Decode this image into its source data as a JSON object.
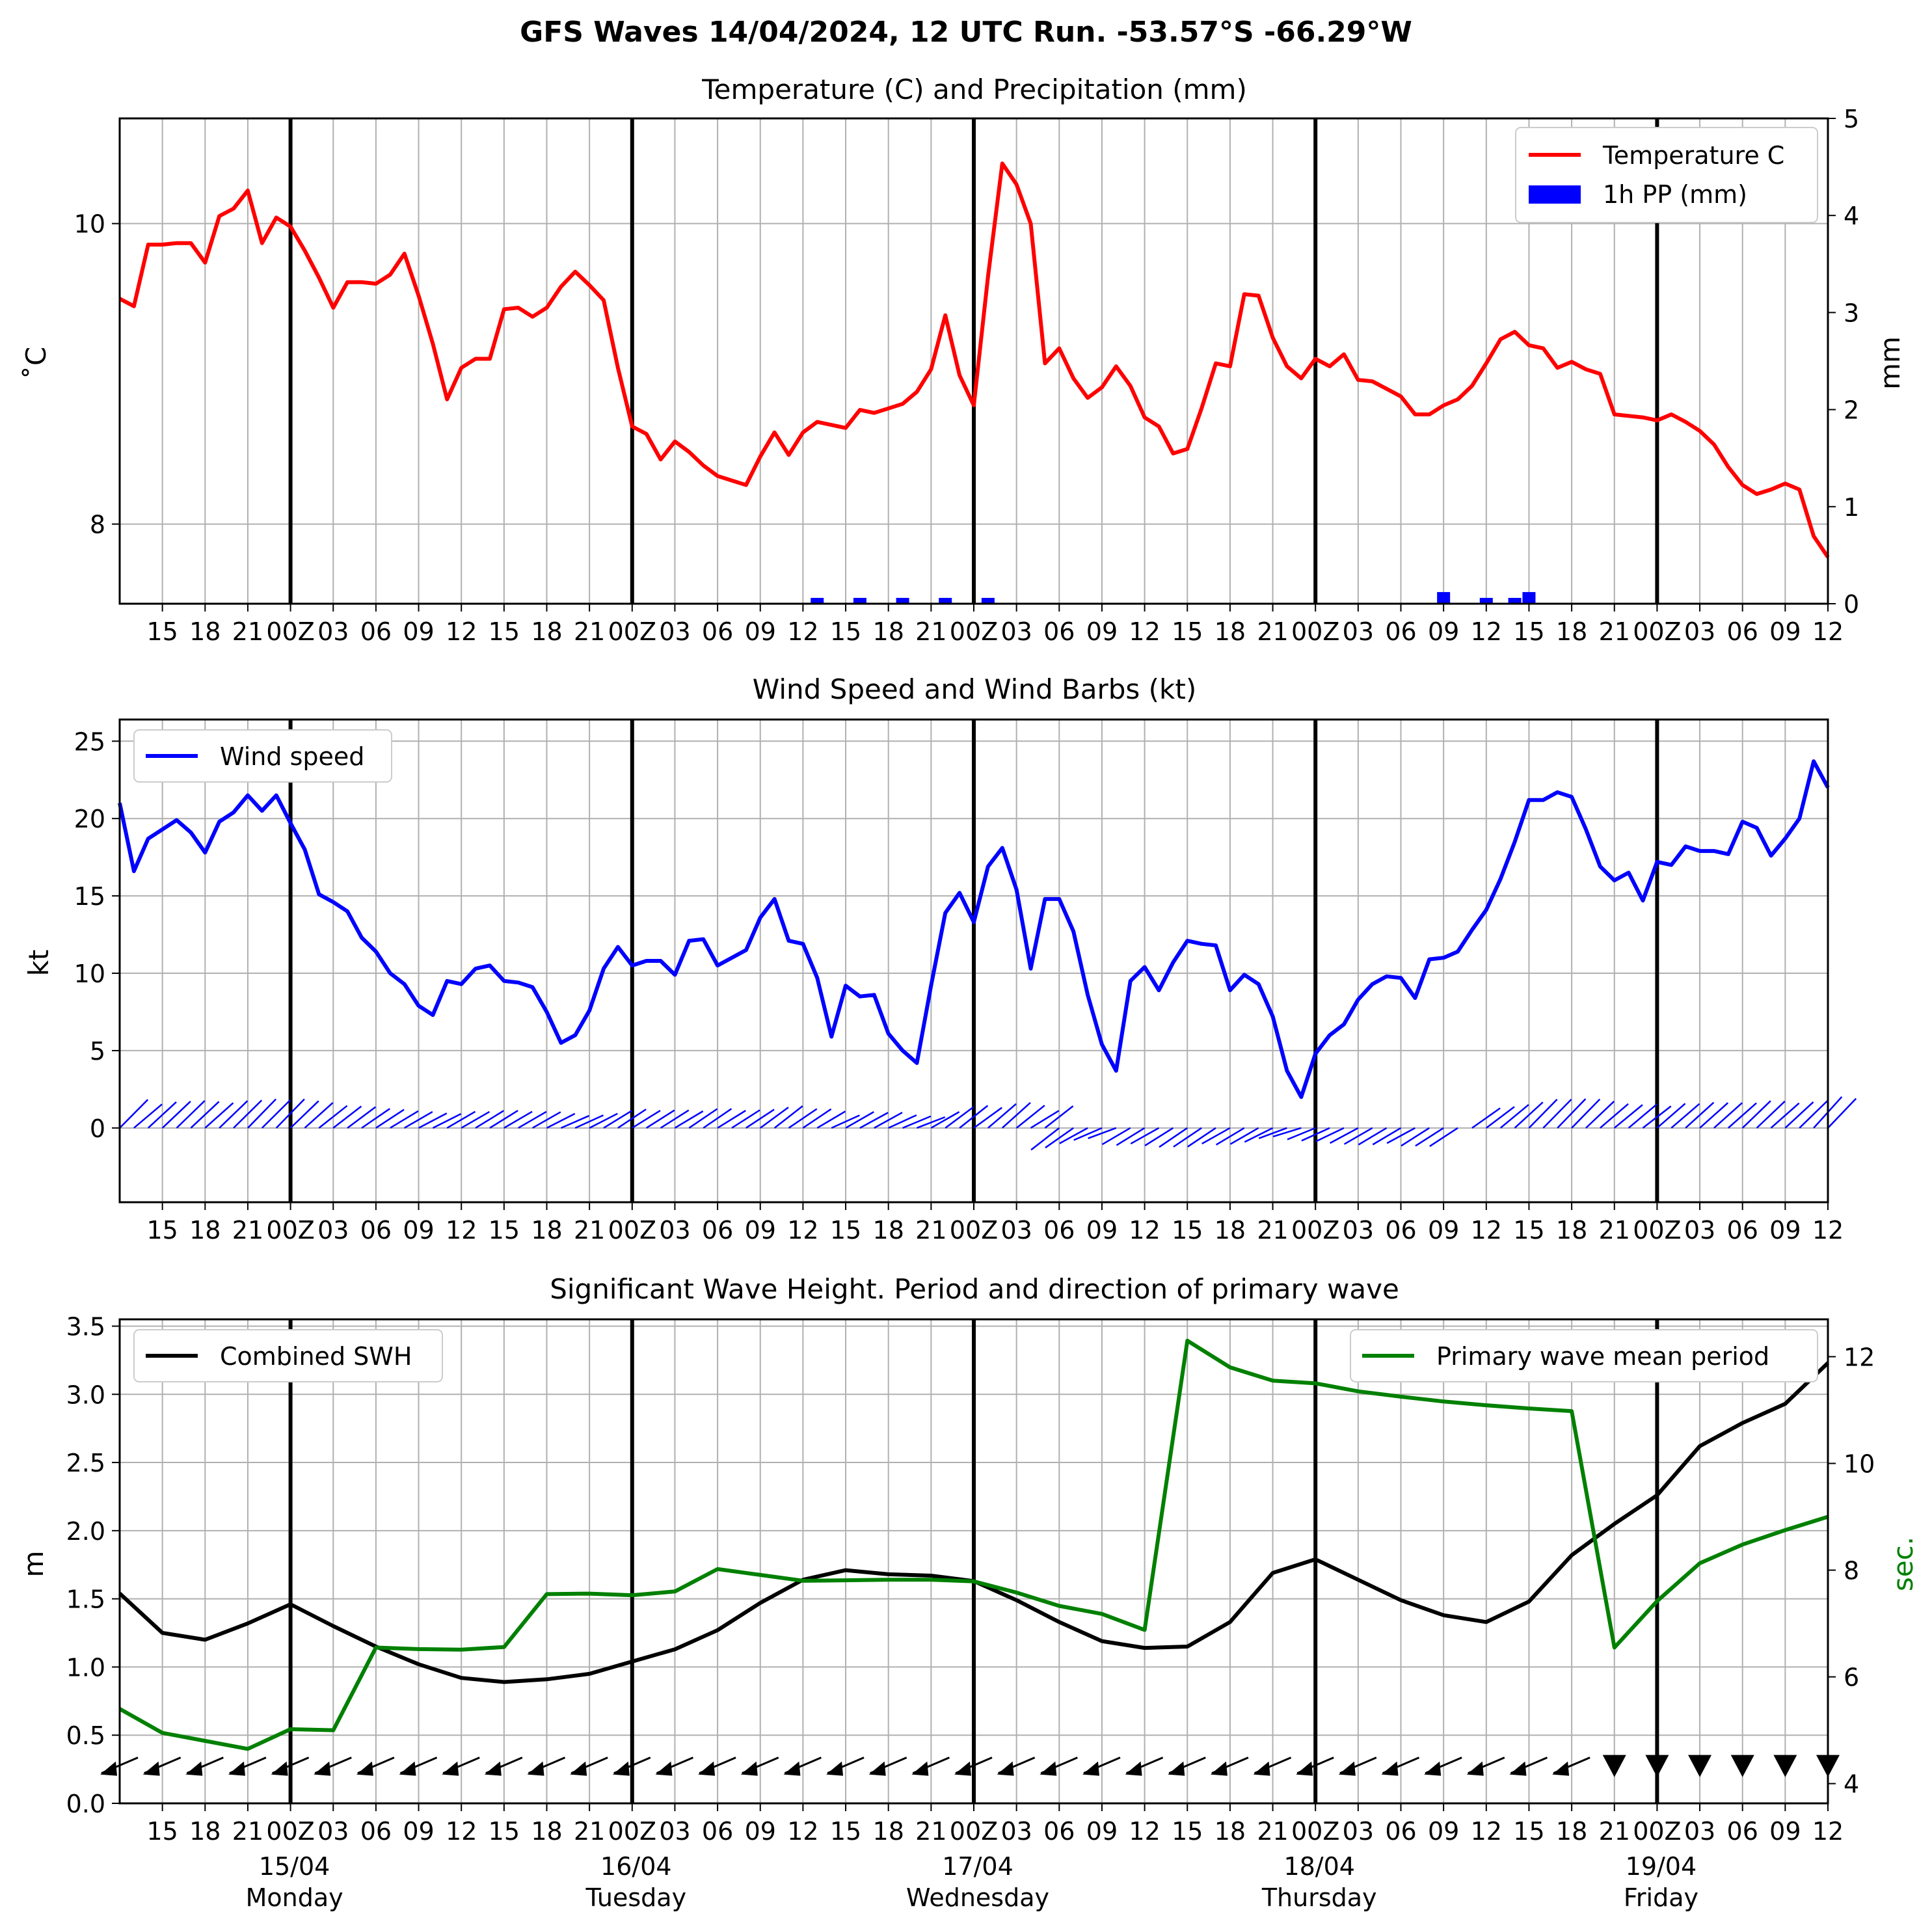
{
  "suptitle": "GFS Waves 14/04/2024, 12 UTC Run. -53.57°S -66.29°W",
  "time_axis": {
    "start_hour": 12,
    "hours_total": 120,
    "tick_labels": [
      "15",
      "18",
      "21",
      "00Z",
      "03",
      "06",
      "09",
      "12",
      "15",
      "18",
      "21",
      "00Z",
      "03",
      "06",
      "09",
      "12",
      "15",
      "18",
      "21",
      "00Z",
      "03",
      "06",
      "09",
      "12",
      "15",
      "18",
      "21",
      "00Z",
      "03",
      "06",
      "09",
      "12",
      "15",
      "18",
      "21",
      "00Z",
      "03",
      "06",
      "09",
      "12"
    ],
    "day_labels": [
      {
        "date": "15/04",
        "weekday": "Monday"
      },
      {
        "date": "16/04",
        "weekday": "Tuesday"
      },
      {
        "date": "17/04",
        "weekday": "Wednesday"
      },
      {
        "date": "18/04",
        "weekday": "Thursday"
      },
      {
        "date": "19/04",
        "weekday": "Friday"
      }
    ]
  },
  "colors": {
    "temperature": "#ff0000",
    "precip": "#0000ff",
    "wind": "#0000ff",
    "swh": "#000000",
    "period": "#008000",
    "grid": "#b0b0b0"
  },
  "chart_data": [
    {
      "type": "line",
      "title": "Temperature (C) and Precipitation (mm)",
      "ylabel": "$^\\circ$C",
      "ylabel_display": "˚C",
      "y2label": "mm",
      "ylim": [
        7.47,
        10.7
      ],
      "y_ticks": [
        "8",
        "10"
      ],
      "y2lim": [
        0,
        5
      ],
      "y2_ticks": [
        "0",
        "1",
        "2",
        "3",
        "4",
        "5"
      ],
      "legend": [
        "Temperature C",
        "1h PP (mm)"
      ],
      "legend_position": "upper right",
      "series": [
        {
          "name": "Temperature C",
          "axis": "left",
          "hours": [
            12,
            13,
            14,
            15,
            16,
            17,
            18,
            19,
            20,
            21,
            22,
            23,
            24,
            25,
            26,
            27,
            28,
            29,
            30,
            31,
            32,
            33,
            34,
            35,
            36,
            37,
            38,
            39,
            40,
            41,
            42,
            43,
            44,
            45,
            46,
            47,
            48,
            49,
            50,
            51,
            52,
            53,
            54,
            55,
            56,
            57,
            58,
            59,
            60,
            61,
            62,
            63,
            64,
            65,
            66,
            67,
            68,
            69,
            70,
            71,
            72,
            73,
            74,
            75,
            76,
            77,
            78,
            79,
            80,
            81,
            82,
            83,
            84,
            85,
            86,
            87,
            88,
            89,
            90,
            91,
            92,
            93,
            94,
            95,
            96,
            97,
            98,
            99,
            100,
            101,
            102,
            103,
            104,
            105,
            106,
            107,
            108,
            109,
            110,
            111,
            112,
            113,
            114,
            115,
            116,
            117,
            118,
            119,
            120,
            121,
            122,
            123,
            124,
            125,
            126,
            127,
            128,
            129,
            130,
            131,
            132
          ],
          "values": [
            9.5,
            9.45,
            9.86,
            9.86,
            9.87,
            9.87,
            9.74,
            10.05,
            10.1,
            10.22,
            9.87,
            10.04,
            9.98,
            9.82,
            9.64,
            9.44,
            9.61,
            9.61,
            9.6,
            9.66,
            9.8,
            9.52,
            9.2,
            8.83,
            9.04,
            9.1,
            9.1,
            9.43,
            9.44,
            9.38,
            9.44,
            9.58,
            9.68,
            9.59,
            9.49,
            9.04,
            8.65,
            8.6,
            8.43,
            8.55,
            8.48,
            8.39,
            8.32,
            8.29,
            8.26,
            8.45,
            8.61,
            8.46,
            8.61,
            8.68,
            8.66,
            8.64,
            8.76,
            8.74,
            8.77,
            8.8,
            8.88,
            9.03,
            9.39,
            8.99,
            8.79,
            9.65,
            10.4,
            10.26,
            10.0,
            9.07,
            9.17,
            8.97,
            8.84,
            8.91,
            9.05,
            8.92,
            8.71,
            8.65,
            8.47,
            8.5,
            8.77,
            9.07,
            9.05,
            9.53,
            9.52,
            9.24,
            9.05,
            8.97,
            9.1,
            9.05,
            9.13,
            8.96,
            8.95,
            8.9,
            8.85,
            8.73,
            8.73,
            8.79,
            8.83,
            8.92,
            9.07,
            9.23,
            9.28,
            9.19,
            9.17,
            9.04,
            9.08,
            9.03,
            9.0,
            8.73,
            8.72,
            8.71,
            8.69,
            8.73,
            8.68,
            8.62,
            8.53,
            8.38,
            8.26,
            8.2,
            8.23,
            8.27,
            8.23,
            7.92,
            7.78
          ]
        },
        {
          "name": "1h PP (mm)",
          "axis": "right",
          "type": "bar",
          "hours": [
            61,
            64,
            67,
            70,
            73,
            105,
            108,
            110,
            111
          ],
          "values": [
            0.06,
            0.06,
            0.06,
            0.06,
            0.06,
            0.12,
            0.06,
            0.06,
            0.12
          ]
        }
      ]
    },
    {
      "type": "line",
      "title": "Wind Speed and Wind Barbs (kt)",
      "ylabel": "kt",
      "ylim": [
        -4.8,
        26.4
      ],
      "y_ticks": [
        "0",
        "5",
        "10",
        "15",
        "20",
        "25"
      ],
      "legend": [
        "Wind speed"
      ],
      "legend_position": "upper left",
      "series": [
        {
          "name": "Wind speed",
          "hours": [
            12,
            13,
            14,
            15,
            16,
            17,
            18,
            19,
            20,
            21,
            22,
            23,
            24,
            25,
            26,
            27,
            28,
            29,
            30,
            31,
            32,
            33,
            34,
            35,
            36,
            37,
            38,
            39,
            40,
            41,
            42,
            43,
            44,
            45,
            46,
            47,
            48,
            49,
            50,
            51,
            52,
            53,
            54,
            55,
            56,
            57,
            58,
            59,
            60,
            61,
            62,
            63,
            64,
            65,
            66,
            67,
            68,
            69,
            70,
            71,
            72,
            73,
            74,
            75,
            76,
            77,
            78,
            79,
            80,
            81,
            82,
            83,
            84,
            85,
            86,
            87,
            88,
            89,
            90,
            91,
            92,
            93,
            94,
            95,
            96,
            97,
            98,
            99,
            100,
            101,
            102,
            103,
            104,
            105,
            106,
            107,
            108,
            109,
            110,
            111,
            112,
            113,
            114,
            115,
            116,
            117,
            118,
            119,
            120,
            121,
            122,
            123,
            124,
            125,
            126,
            127,
            128,
            129,
            130,
            131,
            132
          ],
          "values": [
            21.0,
            16.6,
            18.7,
            19.3,
            19.9,
            19.1,
            17.8,
            19.8,
            20.4,
            21.5,
            20.5,
            21.5,
            19.7,
            18.0,
            15.1,
            14.6,
            14.0,
            12.3,
            11.4,
            10.0,
            9.3,
            7.9,
            7.3,
            9.5,
            9.3,
            10.3,
            10.5,
            9.5,
            9.4,
            9.1,
            7.5,
            5.5,
            6.0,
            7.6,
            10.3,
            11.7,
            10.5,
            10.8,
            10.8,
            9.9,
            12.1,
            12.2,
            10.5,
            11.0,
            11.5,
            13.6,
            14.8,
            12.1,
            11.9,
            9.7,
            5.9,
            9.2,
            8.5,
            8.6,
            6.1,
            5.0,
            4.2,
            9.2,
            13.9,
            15.2,
            13.3,
            16.9,
            18.1,
            15.4,
            10.3,
            14.8,
            14.8,
            12.7,
            8.6,
            5.4,
            3.7,
            9.5,
            10.4,
            8.9,
            10.7,
            12.1,
            11.9,
            11.8,
            8.9,
            9.9,
            9.3,
            7.2,
            3.7,
            2.0,
            4.8,
            6.0,
            6.7,
            8.3,
            9.3,
            9.8,
            9.7,
            8.4,
            10.9,
            11.0,
            11.4,
            12.8,
            14.1,
            16.1,
            18.5,
            21.2,
            21.2,
            21.7,
            21.4,
            19.3,
            16.9,
            16.0,
            16.5,
            14.7,
            17.2,
            17.0,
            18.2,
            17.9,
            17.9,
            17.7,
            19.8,
            19.4,
            17.6,
            18.7,
            20.0,
            23.7,
            22.0
          ]
        }
      ]
    },
    {
      "type": "line",
      "title": "Significant Wave Height. Period and direction of primary wave",
      "ylabel": "m",
      "y2label": "sec.",
      "ylim": [
        0,
        3.55
      ],
      "y_ticks": [
        "0.0",
        "0.5",
        "1.0",
        "1.5",
        "2.0",
        "2.5",
        "3.0",
        "3.5"
      ],
      "y2lim": [
        3.63,
        12.7
      ],
      "y2_ticks": [
        "4",
        "6",
        "8",
        "10",
        "12"
      ],
      "legend": [
        "Combined SWH",
        "Primary wave mean period"
      ],
      "series": [
        {
          "name": "Combined SWH",
          "axis": "left",
          "hours": [
            12,
            15,
            18,
            21,
            24,
            27,
            30,
            33,
            36,
            39,
            42,
            45,
            48,
            51,
            54,
            57,
            60,
            63,
            66,
            69,
            72,
            75,
            78,
            81,
            84,
            87,
            90,
            93,
            96,
            99,
            102,
            105,
            108,
            111,
            114,
            117,
            120,
            123,
            126,
            129,
            132
          ],
          "values": [
            1.54,
            1.25,
            1.2,
            1.32,
            1.46,
            1.3,
            1.15,
            1.02,
            0.92,
            0.89,
            0.91,
            0.95,
            1.04,
            1.13,
            1.27,
            1.47,
            1.64,
            1.71,
            1.68,
            1.67,
            1.63,
            1.49,
            1.33,
            1.19,
            1.14,
            1.15,
            1.33,
            1.69,
            1.79,
            1.64,
            1.49,
            1.38,
            1.33,
            1.48,
            1.82,
            2.05,
            2.26,
            2.62,
            2.79,
            2.93,
            3.23
          ]
        },
        {
          "name": "Primary wave mean period",
          "axis": "right",
          "hours": [
            12,
            15,
            18,
            21,
            24,
            27,
            30,
            33,
            36,
            39,
            42,
            45,
            48,
            51,
            54,
            57,
            60,
            63,
            66,
            69,
            72,
            75,
            78,
            81,
            84,
            87,
            90,
            93,
            96,
            99,
            102,
            105,
            108,
            111,
            114,
            117,
            120,
            123,
            126,
            129,
            132
          ],
          "values": [
            5.4,
            4.95,
            4.8,
            4.65,
            5.02,
            5.0,
            6.55,
            6.52,
            6.51,
            6.56,
            7.55,
            7.56,
            7.53,
            7.6,
            8.02,
            7.91,
            7.8,
            7.81,
            7.82,
            7.82,
            7.79,
            7.58,
            7.33,
            7.18,
            6.88,
            12.3,
            11.8,
            11.55,
            11.5,
            11.35,
            11.25,
            11.16,
            11.09,
            11.03,
            10.98,
            6.55,
            7.42,
            8.13,
            8.48,
            8.75,
            9.0
          ]
        }
      ],
      "direction_arrows": "primary wave direction arrows every 3 h"
    }
  ]
}
